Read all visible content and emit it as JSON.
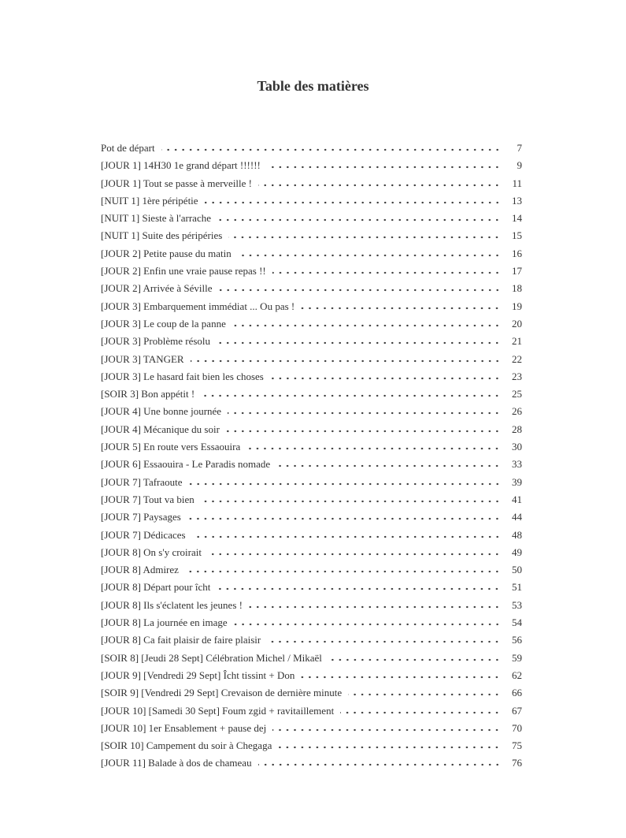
{
  "page": {
    "title": "Table des matières"
  },
  "colors": {
    "text": "#333333",
    "background": "#ffffff"
  },
  "toc": {
    "entries": [
      {
        "label": "Pot de départ",
        "page": "7"
      },
      {
        "label": "[JOUR 1] 14H30 1e grand départ !!!!!!",
        "page": "9"
      },
      {
        "label": "[JOUR 1] Tout se passe à merveille !",
        "page": "11"
      },
      {
        "label": "[NUIT 1] 1ère péripétie",
        "page": "13"
      },
      {
        "label": "[NUIT 1] Sieste à l'arrache",
        "page": "14"
      },
      {
        "label": "[NUIT 1] Suite des péripéries",
        "page": "15"
      },
      {
        "label": "[JOUR 2] Petite pause du matin",
        "page": "16"
      },
      {
        "label": "[JOUR 2] Enfin une vraie pause repas !!",
        "page": "17"
      },
      {
        "label": "[JOUR 2] Arrivée à Séville",
        "page": "18"
      },
      {
        "label": "[JOUR 3] Embarquement immédiat ... Ou pas !",
        "page": "19"
      },
      {
        "label": "[JOUR 3] Le coup de la panne",
        "page": "20"
      },
      {
        "label": "[JOUR 3] Problème résolu",
        "page": "21"
      },
      {
        "label": "[JOUR 3] TANGER",
        "page": "22"
      },
      {
        "label": "[JOUR 3] Le hasard fait bien les choses",
        "page": "23"
      },
      {
        "label": "[SOIR 3] Bon appétit !",
        "page": "25"
      },
      {
        "label": "[JOUR 4] Une bonne journée",
        "page": "26"
      },
      {
        "label": "[JOUR 4] Mécanique du soir",
        "page": "28"
      },
      {
        "label": "[JOUR 5] En route vers Essaouira",
        "page": "30"
      },
      {
        "label": "[JOUR 6] Essaouira - Le Paradis nomade",
        "page": "33"
      },
      {
        "label": "[JOUR 7] Tafraoute",
        "page": "39"
      },
      {
        "label": "[JOUR 7] Tout va bien",
        "page": "41"
      },
      {
        "label": "[JOUR 7] Paysages",
        "page": "44"
      },
      {
        "label": "[JOUR 7] Dédicaces",
        "page": "48"
      },
      {
        "label": "[JOUR 8] On s'y croirait",
        "page": "49"
      },
      {
        "label": "[JOUR 8] Admirez",
        "page": "50"
      },
      {
        "label": "[JOUR 8] Départ pour îcht",
        "page": "51"
      },
      {
        "label": "[JOUR 8] Ils s'éclatent les jeunes !",
        "page": "53"
      },
      {
        "label": "[JOUR 8] La journée en image",
        "page": "54"
      },
      {
        "label": "[JOUR 8] Ca fait plaisir de faire plaisir",
        "page": "56"
      },
      {
        "label": "[SOIR 8] [Jeudi 28 Sept] Célébration Michel / Mikaël",
        "page": "59"
      },
      {
        "label": "[JOUR 9] [Vendredi 29 Sept] Îcht tissint + Don",
        "page": "62"
      },
      {
        "label": "[SOIR 9] [Vendredi 29 Sept] Crevaison de dernière minute",
        "page": "66"
      },
      {
        "label": "[JOUR 10] [Samedi 30 Sept] Foum zgid + ravitaillement",
        "page": "67"
      },
      {
        "label": "[JOUR 10] 1er Ensablement + pause dej",
        "page": "70"
      },
      {
        "label": "[SOIR 10] Campement du soir à Chegaga",
        "page": "75"
      },
      {
        "label": "[JOUR 11] Balade à dos de chameau",
        "page": "76"
      }
    ]
  }
}
